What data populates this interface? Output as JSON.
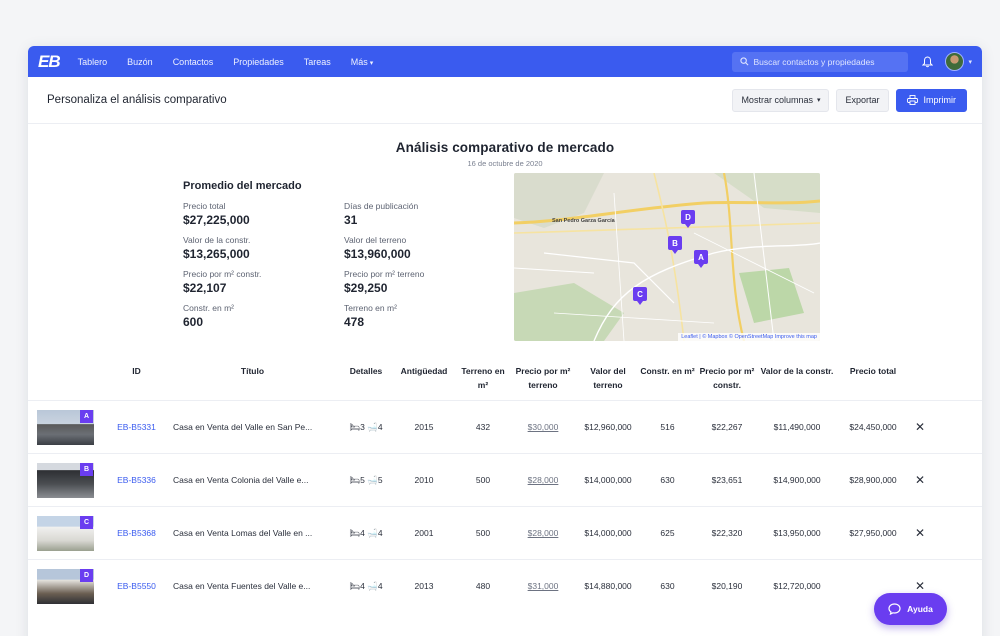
{
  "nav": {
    "logo": "EB",
    "links": [
      "Tablero",
      "Buzón",
      "Contactos",
      "Propiedades",
      "Tareas",
      "Más"
    ],
    "search_placeholder": "Buscar contactos y propiedades",
    "icons": [
      "search-icon",
      "bell-icon",
      "avatar",
      "chevron-down-icon"
    ]
  },
  "toolbar": {
    "title": "Personaliza el análisis comparativo",
    "show_columns": "Mostrar columnas",
    "export": "Exportar",
    "print": "Imprimir"
  },
  "report": {
    "title": "Análisis comparativo de mercado",
    "date": "16 de octubre de 2020"
  },
  "stats": {
    "title": "Promedio del mercado",
    "items": [
      {
        "label": "Precio total",
        "value": "$27,225,000"
      },
      {
        "label": "Días de publicación",
        "value": "31"
      },
      {
        "label": "Valor de la constr.",
        "value": "$13,265,000"
      },
      {
        "label": "Valor del terreno",
        "value": "$13,960,000"
      },
      {
        "label": "Precio por m² constr.",
        "value": "$22,107"
      },
      {
        "label": "Precio por m² terreno",
        "value": "$29,250"
      },
      {
        "label": "Constr. en m²",
        "value": "600"
      },
      {
        "label": "Terreno en m²",
        "value": "478"
      }
    ]
  },
  "map": {
    "city_label": "San Pedro\nGarza García",
    "attribution": "Leaflet | © Mapbox © OpenStreetMap Improve this map",
    "pins": [
      "A",
      "B",
      "C",
      "D"
    ]
  },
  "table": {
    "headers": [
      "",
      "ID",
      "Título",
      "Detalles",
      "Antigüedad",
      "Terreno en m²",
      "Precio por m² terreno",
      "Valor del terreno",
      "Constr. en m²",
      "Precio por m² constr.",
      "Valor de la constr.",
      "Precio total",
      ""
    ],
    "rows": [
      {
        "letter": "A",
        "id": "EB-B5331",
        "title": "Casa en Venta del Valle en San Pe...",
        "beds": "3",
        "baths": "4",
        "age": "2015",
        "land_m2": "432",
        "land_price_m2": "$30,000",
        "land_value": "$12,960,000",
        "built_m2": "516",
        "built_price_m2": "$22,267",
        "built_value": "$11,490,000",
        "total": "$24,450,000"
      },
      {
        "letter": "B",
        "id": "EB-B5336",
        "title": "Casa en Venta Colonia del Valle e...",
        "beds": "5",
        "baths": "5",
        "age": "2010",
        "land_m2": "500",
        "land_price_m2": "$28,000",
        "land_value": "$14,000,000",
        "built_m2": "630",
        "built_price_m2": "$23,651",
        "built_value": "$14,900,000",
        "total": "$28,900,000"
      },
      {
        "letter": "C",
        "id": "EB-B5368",
        "title": "Casa en Venta Lomas del Valle en ...",
        "beds": "4",
        "baths": "4",
        "age": "2001",
        "land_m2": "500",
        "land_price_m2": "$28,000",
        "land_value": "$14,000,000",
        "built_m2": "625",
        "built_price_m2": "$22,320",
        "built_value": "$13,950,000",
        "total": "$27,950,000"
      },
      {
        "letter": "D",
        "id": "EB-B5550",
        "title": "Casa en Venta Fuentes del Valle e...",
        "beds": "4",
        "baths": "4",
        "age": "2013",
        "land_m2": "480",
        "land_price_m2": "$31,000",
        "land_value": "$14,880,000",
        "built_m2": "630",
        "built_price_m2": "$20,190",
        "built_value": "$12,720,000",
        "total": ""
      }
    ]
  },
  "help": {
    "label": "Ayuda"
  },
  "colors": {
    "brand": "#3a5bef",
    "pin": "#6a3df0"
  }
}
